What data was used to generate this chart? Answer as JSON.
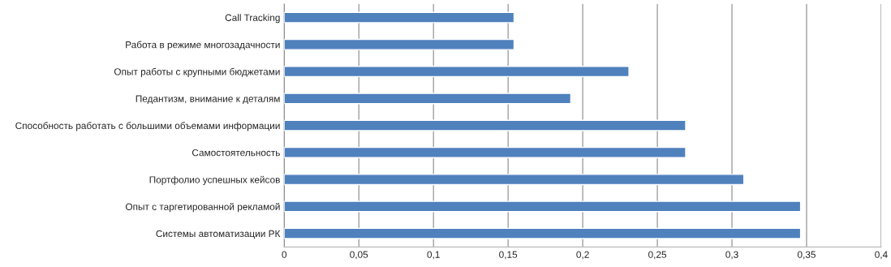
{
  "chart_data": {
    "type": "bar",
    "orientation": "horizontal",
    "categories": [
      "Call Tracking",
      "Работа в режиме многозадачности",
      "Опыт работы с крупными бюджетами",
      "Педантизм, внимание к деталям",
      "Способность работать с большими объемами информации",
      "Самостоятельность",
      "Портфолио успешных кейсов",
      "Опыт с таргетированной рекламой",
      "Системы автоматизации РК"
    ],
    "values": [
      0.154,
      0.154,
      0.231,
      0.192,
      0.269,
      0.269,
      0.308,
      0.346,
      0.346
    ],
    "color": "#4f81bd",
    "xlim": [
      0,
      0.4
    ],
    "xticks": [
      0,
      {
        "value": 0.05,
        "label": "0,05"
      },
      {
        "value": 0.1,
        "label": "0,1"
      },
      {
        "value": 0.15,
        "label": "0,15"
      },
      {
        "value": 0.2,
        "label": "0,2"
      },
      {
        "value": 0.25,
        "label": "0,25"
      },
      {
        "value": 0.3,
        "label": "0,3"
      },
      {
        "value": 0.35,
        "label": "0,35"
      },
      {
        "value": 0.4,
        "label": "0,4"
      }
    ],
    "grid": "x",
    "legend": false
  }
}
